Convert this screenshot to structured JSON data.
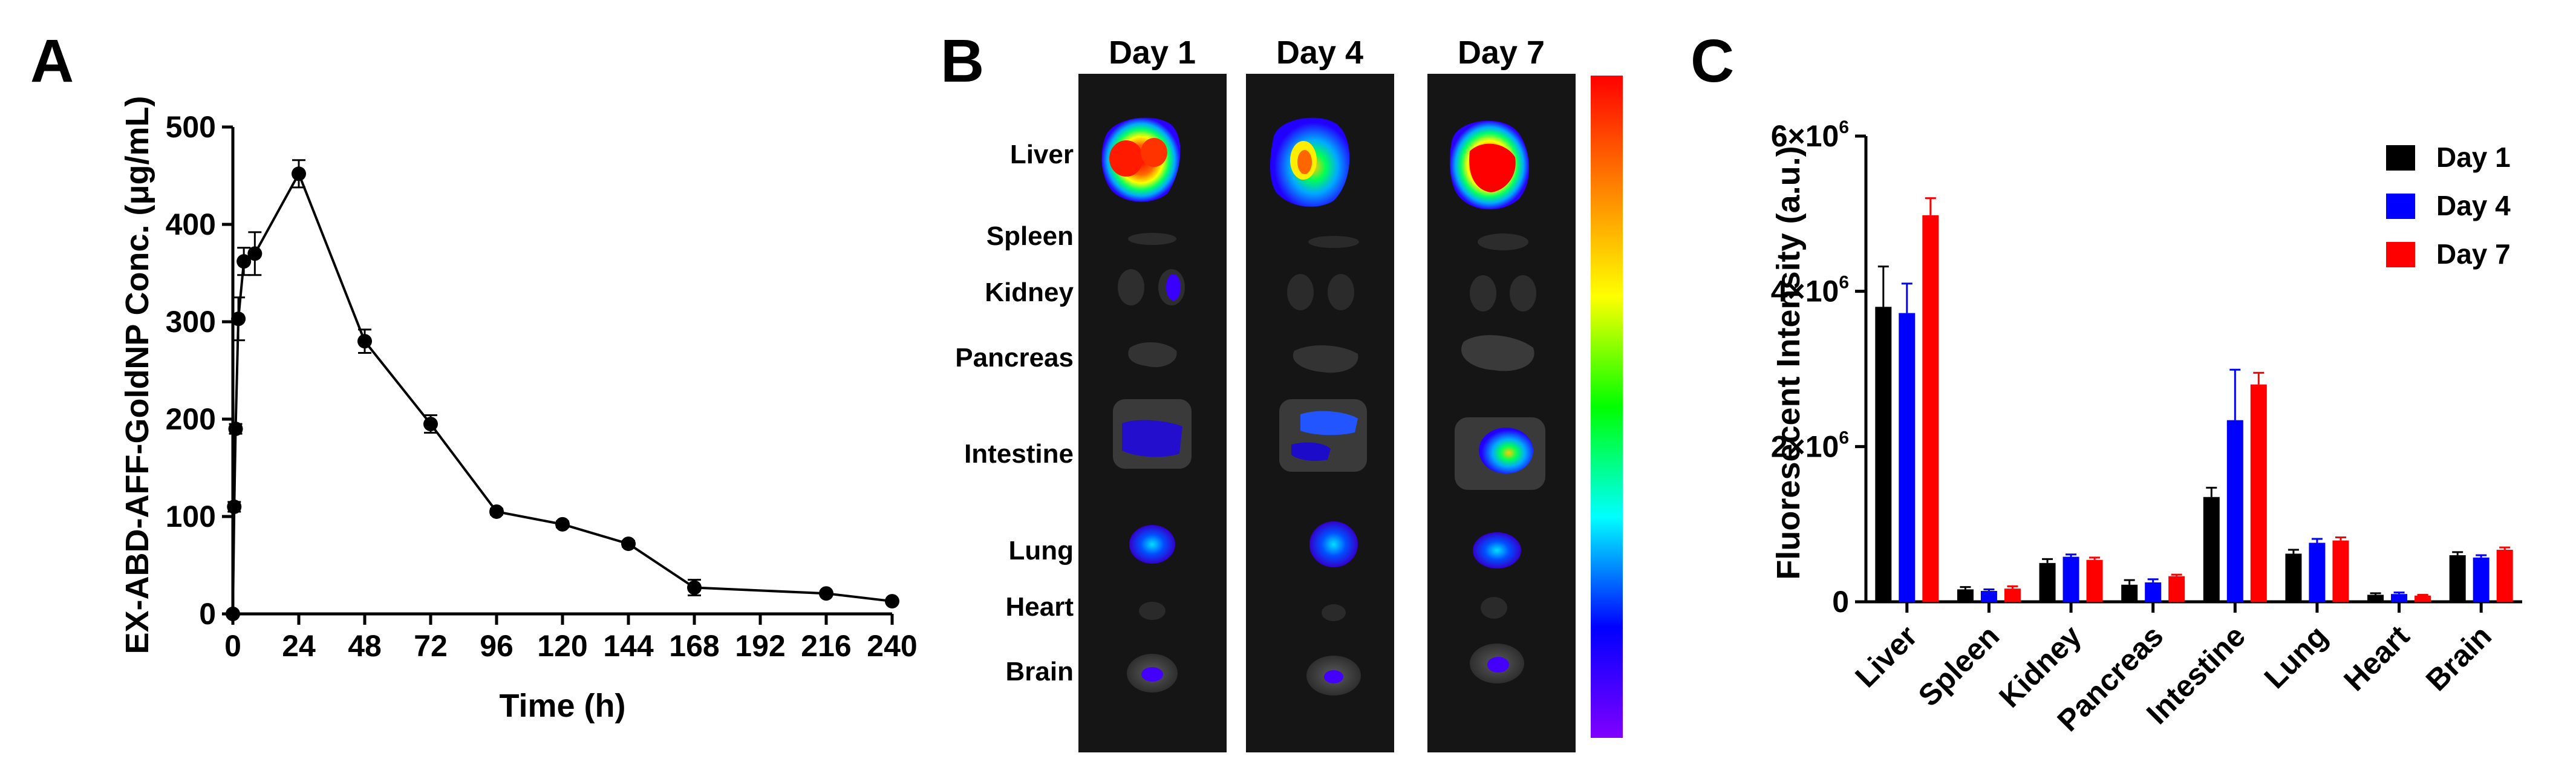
{
  "panels": {
    "a": "A",
    "b": "B",
    "c": "C"
  },
  "chart_data": [
    {
      "panel": "A",
      "type": "line",
      "xlabel": "Time (h)",
      "ylabel": "EX-ABD-AFF-GoldNP Conc. (μg/mL)",
      "xlim": [
        0,
        240
      ],
      "ylim": [
        0,
        500
      ],
      "xticks": [
        "0",
        "24",
        "48",
        "72",
        "96",
        "120",
        "144",
        "168",
        "192",
        "216",
        "240"
      ],
      "yticks": [
        "0",
        "100",
        "200",
        "300",
        "400",
        "500"
      ],
      "points": [
        {
          "x": 0,
          "y": 0,
          "err": 0
        },
        {
          "x": 0.5,
          "y": 110,
          "err": 5
        },
        {
          "x": 1,
          "y": 190,
          "err": 5
        },
        {
          "x": 2,
          "y": 303,
          "err": 22
        },
        {
          "x": 4,
          "y": 362,
          "err": 14
        },
        {
          "x": 8,
          "y": 370,
          "err": 22
        },
        {
          "x": 24,
          "y": 452,
          "err": 14
        },
        {
          "x": 48,
          "y": 280,
          "err": 12
        },
        {
          "x": 72,
          "y": 195,
          "err": 9
        },
        {
          "x": 96,
          "y": 105,
          "err": 3
        },
        {
          "x": 120,
          "y": 92,
          "err": 3
        },
        {
          "x": 144,
          "y": 72,
          "err": 3
        },
        {
          "x": 168,
          "y": 27,
          "err": 8
        },
        {
          "x": 216,
          "y": 21,
          "err": 2
        },
        {
          "x": 240,
          "y": 13,
          "err": 2
        }
      ]
    },
    {
      "panel": "B",
      "type": "heatmap",
      "days": [
        "Day 1",
        "Day 4",
        "Day 7"
      ],
      "organs": [
        "Liver",
        "Spleen",
        "Kidney",
        "Pancreas",
        "Intestine",
        "Lung",
        "Heart",
        "Brain"
      ],
      "colorbar": [
        "#ff0000",
        "#ff8000",
        "#ffff00",
        "#00ff00",
        "#00ffff",
        "#0000ff",
        "#8000ff"
      ]
    },
    {
      "panel": "C",
      "type": "bar",
      "ylabel": "Fluoresecent Intensity (a.u.)",
      "ylim": [
        0,
        6000000
      ],
      "yticks": [
        {
          "value": 0,
          "base": "0",
          "exp": ""
        },
        {
          "value": 2000000,
          "base": "2×10",
          "exp": "6"
        },
        {
          "value": 4000000,
          "base": "4×10",
          "exp": "6"
        },
        {
          "value": 6000000,
          "base": "6×10",
          "exp": "6"
        }
      ],
      "categories": [
        "Liver",
        "Spleen",
        "Kidney",
        "Pancreas",
        "Intestine",
        "Lung",
        "Heart",
        "Brain"
      ],
      "series": [
        {
          "name": "Day 1",
          "color": "#000000",
          "values": [
            3800000,
            160000,
            500000,
            220000,
            1350000,
            620000,
            90000,
            600000
          ],
          "errors": [
            520000,
            30000,
            50000,
            60000,
            120000,
            50000,
            20000,
            40000
          ]
        },
        {
          "name": "Day 4",
          "color": "#0000ff",
          "values": [
            3720000,
            140000,
            580000,
            250000,
            2340000,
            760000,
            100000,
            570000
          ],
          "errors": [
            380000,
            20000,
            30000,
            40000,
            650000,
            50000,
            20000,
            30000
          ]
        },
        {
          "name": "Day 7",
          "color": "#ff0000",
          "values": [
            4980000,
            170000,
            540000,
            330000,
            2800000,
            790000,
            80000,
            670000
          ],
          "errors": [
            220000,
            30000,
            30000,
            20000,
            150000,
            40000,
            10000,
            30000
          ]
        }
      ],
      "legend": "top-right"
    }
  ]
}
